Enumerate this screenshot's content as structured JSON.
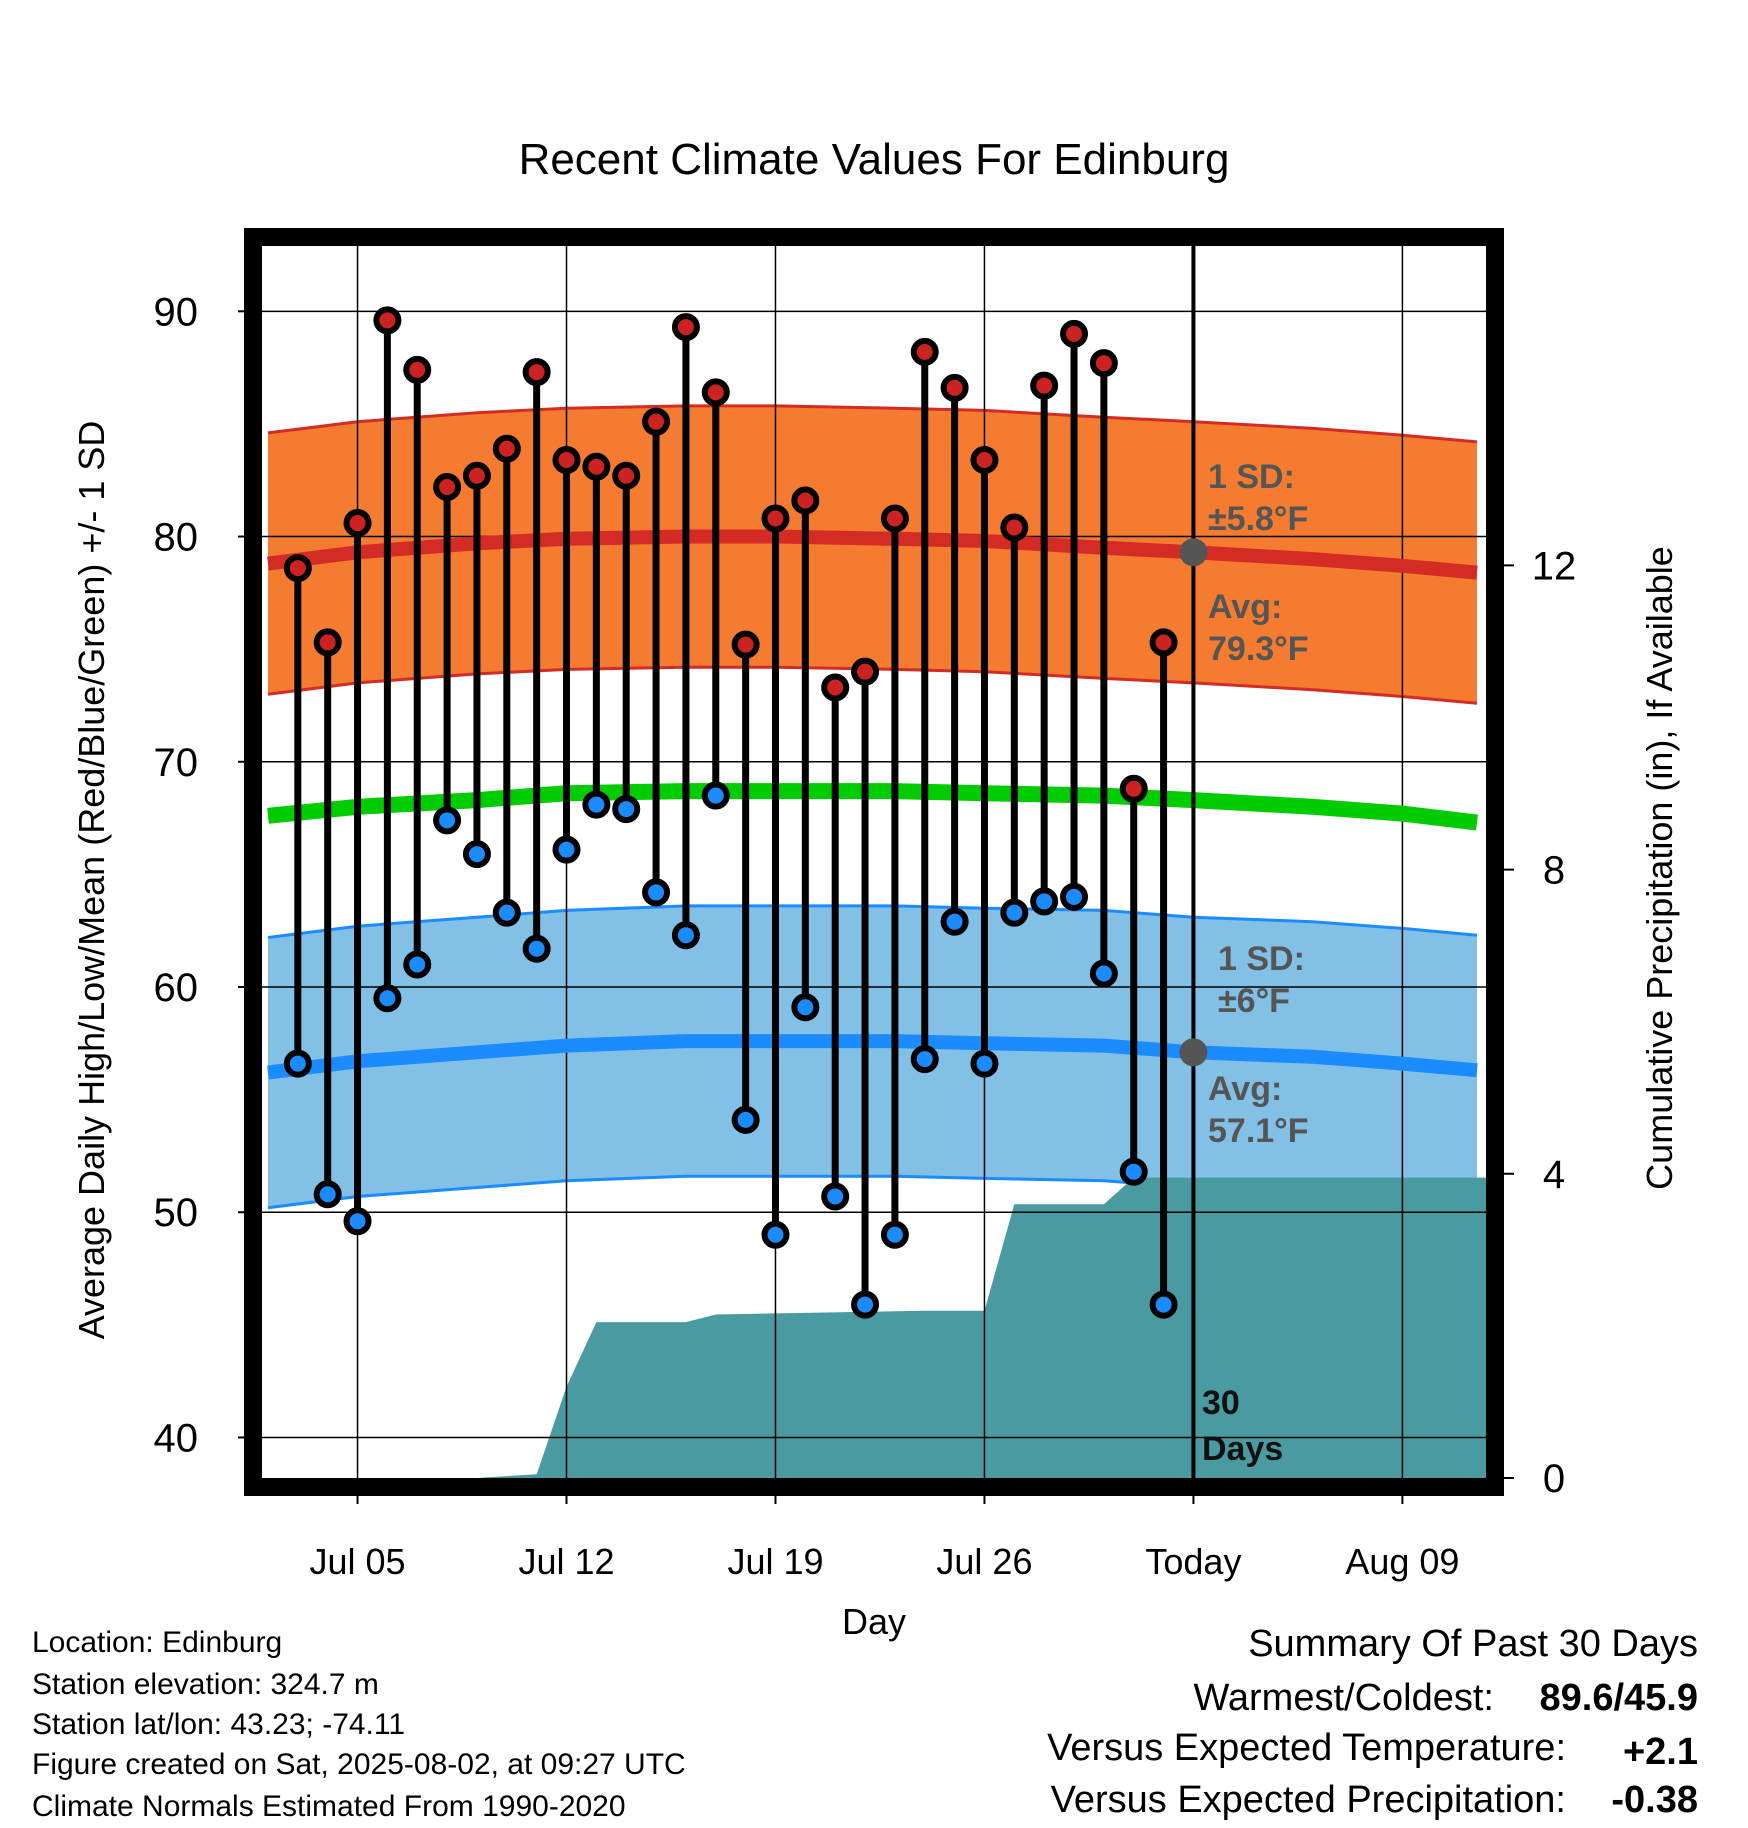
{
  "chart_data": {
    "type": "line",
    "title": "Recent Climate Values For Edinburg",
    "xlabel": "Day",
    "ylabel_left": "Average Daily High/Low/Mean (Red/Blue/Green) +/- 1 SD",
    "ylabel_right": "Cumulative Precipitation (in), If Available",
    "ylim_left": [
      38.2,
      92.9
    ],
    "ylim_right": [
      0,
      16.2
    ],
    "left_ticks": [
      "40",
      "50",
      "60",
      "70",
      "80",
      "90"
    ],
    "right_ticks": [
      "0",
      "4",
      "8",
      "12"
    ],
    "x_ticks": [
      "Jul 05",
      "Jul 12",
      "Jul 19",
      "Jul 26",
      "Today",
      "Aug 09"
    ],
    "x_tick_days": [
      5,
      12,
      19,
      26,
      33,
      40
    ],
    "xlim_days": [
      1.8,
      42.8
    ],
    "grid": true,
    "highs": [
      78.6,
      75.3,
      80.6,
      89.6,
      87.4,
      82.2,
      82.7,
      83.9,
      87.3,
      83.4,
      83.1,
      82.7,
      85.1,
      89.3,
      86.4,
      75.2,
      80.8,
      81.6,
      73.3,
      74.0,
      80.8,
      88.2,
      86.6,
      83.4,
      80.4,
      86.7,
      89.0,
      87.7,
      68.8,
      75.3
    ],
    "lows": [
      56.6,
      50.8,
      49.6,
      59.5,
      61.0,
      67.4,
      65.9,
      63.3,
      61.7,
      66.1,
      68.1,
      67.9,
      64.2,
      62.3,
      68.5,
      54.1,
      49.0,
      59.1,
      50.7,
      45.9,
      49.0,
      56.8,
      62.9,
      56.6,
      63.3,
      63.8,
      64.0,
      60.6,
      51.8,
      45.9
    ],
    "normal_high": {
      "days": [
        2,
        5,
        9,
        12,
        16,
        19,
        23,
        26,
        30,
        33,
        37,
        40,
        42.5
      ],
      "avg": [
        78.8,
        79.3,
        79.7,
        79.9,
        80.0,
        80.0,
        79.9,
        79.8,
        79.5,
        79.3,
        79.0,
        78.7,
        78.4
      ],
      "sd": 5.8
    },
    "normal_mean": {
      "days": [
        2,
        5,
        9,
        12,
        16,
        19,
        23,
        26,
        30,
        33,
        37,
        40,
        42.5
      ],
      "avg": [
        67.6,
        68.0,
        68.3,
        68.6,
        68.7,
        68.7,
        68.7,
        68.6,
        68.5,
        68.3,
        68.0,
        67.7,
        67.3
      ]
    },
    "normal_low": {
      "days": [
        2,
        5,
        9,
        12,
        16,
        19,
        23,
        26,
        30,
        33,
        37,
        40,
        42.5
      ],
      "avg": [
        56.2,
        56.7,
        57.1,
        57.4,
        57.6,
        57.6,
        57.6,
        57.5,
        57.4,
        57.1,
        56.9,
        56.6,
        56.3
      ],
      "sd": 6
    },
    "precip": {
      "days": [
        1.8,
        9.0,
        11.0,
        12.0,
        13.0,
        16.0,
        17.0,
        24.0,
        25.0,
        26.0,
        27.0,
        30.0,
        31.0,
        42.8
      ],
      "values": [
        0,
        0,
        0.05,
        1.2,
        2.05,
        2.05,
        2.15,
        2.2,
        2.2,
        2.2,
        3.6,
        3.6,
        3.95,
        3.95
      ]
    },
    "colors": {
      "high_band": "#f47b2f",
      "high_avg": "#d42b25",
      "high_point": "#cc2222",
      "mean_line": "#00cc00",
      "low_band": "#82c0e6",
      "low_avg": "#1a8cff",
      "low_point": "#1a8cff",
      "precip": "#4a9aa2",
      "today_marker": "#555555"
    }
  },
  "annotations": {
    "high_sd": [
      "1 SD:",
      "±5.8°F"
    ],
    "high_avg": [
      "Avg:",
      "79.3°F"
    ],
    "low_sd": [
      "1 SD:",
      "±6°F"
    ],
    "low_avg": [
      "Avg:",
      "57.1°F"
    ],
    "days_label": [
      "30",
      "Days"
    ]
  },
  "station_info": [
    "Location: Edinburg",
    "Station elevation: 324.7 m",
    "Station lat/lon: 43.23; -74.11",
    "Figure created on Sat, 2025-08-02, at 09:27 UTC",
    "Climate Normals Estimated From 1990-2020"
  ],
  "summary": {
    "title": "Summary Of Past 30 Days",
    "warmest_label": "Warmest/Coldest:",
    "warmest_value": "89.6/45.9",
    "temp_label": "Versus Expected Temperature:",
    "temp_value": "+2.1",
    "temp_color": "#cc2222",
    "precip_label": "Versus Expected Precipitation:",
    "precip_value": "-0.38",
    "precip_color": "#a0522d"
  }
}
